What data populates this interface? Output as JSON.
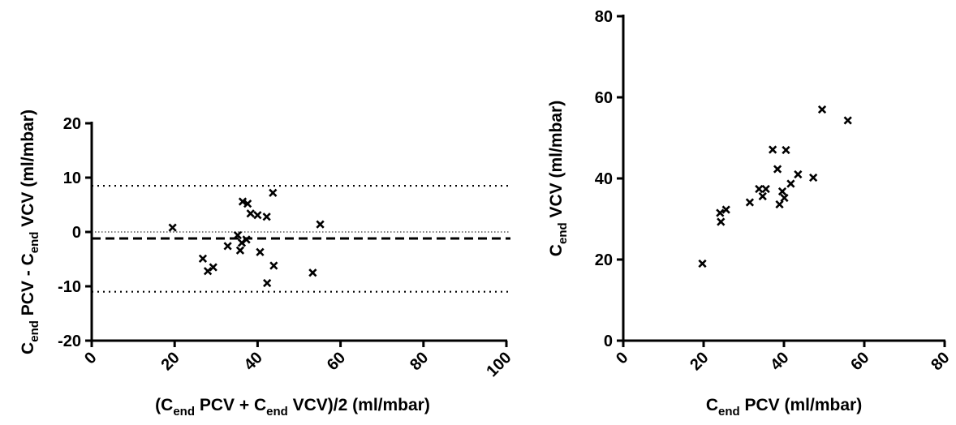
{
  "chart_data": [
    {
      "type": "scatter",
      "marker": "x",
      "xlabel": {
        "prefix": "(C",
        "sub1": "end",
        "mid1": " PCV + C",
        "sub2": "end",
        "suffix": " VCV)/2 (ml/mbar)"
      },
      "ylabel": {
        "prefix": "C",
        "sub1": "end",
        "mid1": " PCV - C",
        "sub2": "end",
        "suffix": " VCV (ml/mbar)"
      },
      "xlim": [
        0,
        100
      ],
      "ylim": [
        -20,
        20
      ],
      "xticks": [
        "0",
        "20",
        "40",
        "60",
        "80",
        "100"
      ],
      "yticks": [
        "-20",
        "-10",
        "0",
        "10",
        "20"
      ],
      "reference_lines": [
        {
          "y": 8.5,
          "style": "dotted"
        },
        {
          "y": 0,
          "style": "fine-dotted"
        },
        {
          "y": -1.2,
          "style": "dashed"
        },
        {
          "y": -11.0,
          "style": "dotted"
        }
      ],
      "points": [
        {
          "x": 19.5,
          "y": 0.8
        },
        {
          "x": 26.8,
          "y": -4.9
        },
        {
          "x": 28.0,
          "y": -7.2
        },
        {
          "x": 29.3,
          "y": -6.5
        },
        {
          "x": 32.8,
          "y": -2.6
        },
        {
          "x": 35.2,
          "y": -0.6
        },
        {
          "x": 35.8,
          "y": -3.4
        },
        {
          "x": 36.2,
          "y": -2.0
        },
        {
          "x": 36.4,
          "y": 5.6
        },
        {
          "x": 37.3,
          "y": -1.4
        },
        {
          "x": 37.6,
          "y": 5.2
        },
        {
          "x": 38.3,
          "y": 3.4
        },
        {
          "x": 40.0,
          "y": 3.1
        },
        {
          "x": 40.6,
          "y": -3.7
        },
        {
          "x": 42.2,
          "y": 2.8
        },
        {
          "x": 42.3,
          "y": -9.4
        },
        {
          "x": 43.7,
          "y": 7.2
        },
        {
          "x": 43.9,
          "y": -6.2
        },
        {
          "x": 53.3,
          "y": -7.5
        },
        {
          "x": 55.1,
          "y": 1.4
        }
      ]
    },
    {
      "type": "scatter",
      "marker": "x",
      "xlabel": {
        "prefix": "C",
        "sub1": "end",
        "suffix": " PCV (ml/mbar)"
      },
      "ylabel": {
        "prefix": "C",
        "sub1": "end",
        "suffix": " VCV (ml/mbar)"
      },
      "xlim": [
        0,
        80
      ],
      "ylim": [
        0,
        80
      ],
      "xticks": [
        "0",
        "20",
        "40",
        "60",
        "80"
      ],
      "yticks": [
        "0",
        "20",
        "40",
        "60",
        "80"
      ],
      "points": [
        {
          "x": 19.7,
          "y": 19.0
        },
        {
          "x": 24.1,
          "y": 31.5
        },
        {
          "x": 24.3,
          "y": 29.3
        },
        {
          "x": 25.6,
          "y": 32.3
        },
        {
          "x": 31.5,
          "y": 34.1
        },
        {
          "x": 33.8,
          "y": 37.4
        },
        {
          "x": 34.7,
          "y": 35.6
        },
        {
          "x": 35.5,
          "y": 37.4
        },
        {
          "x": 37.2,
          "y": 47.1
        },
        {
          "x": 38.4,
          "y": 42.3
        },
        {
          "x": 38.9,
          "y": 33.6
        },
        {
          "x": 39.6,
          "y": 36.8
        },
        {
          "x": 40.1,
          "y": 35.2
        },
        {
          "x": 40.5,
          "y": 47.0
        },
        {
          "x": 41.7,
          "y": 38.7
        },
        {
          "x": 43.5,
          "y": 41.0
        },
        {
          "x": 47.3,
          "y": 40.2
        },
        {
          "x": 49.5,
          "y": 57.0
        },
        {
          "x": 55.9,
          "y": 54.3
        }
      ]
    }
  ]
}
